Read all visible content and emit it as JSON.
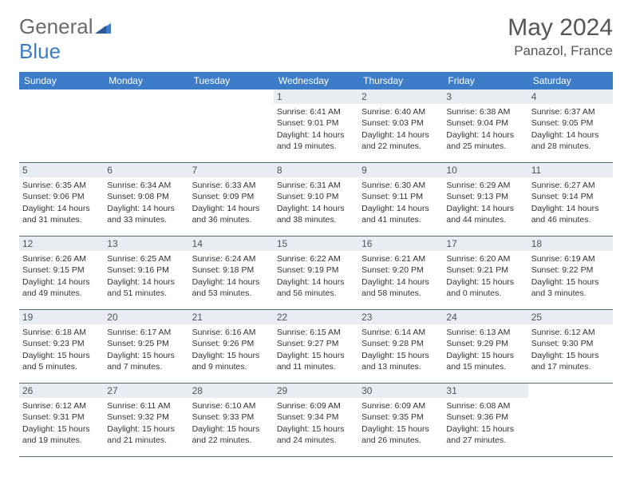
{
  "brand": {
    "part1": "General",
    "part2": "Blue"
  },
  "title": {
    "month_year": "May 2024",
    "location": "Panazol, France"
  },
  "colors": {
    "header_bg": "#3d7cc9",
    "header_text": "#ffffff",
    "daynum_bg": "#e9edf1",
    "daynum_text": "#4a5560",
    "border": "#5a6b7a",
    "title_text": "#555555",
    "logo_gray": "#6b6b6b",
    "logo_blue": "#3d7cc9"
  },
  "weekdays": [
    "Sunday",
    "Monday",
    "Tuesday",
    "Wednesday",
    "Thursday",
    "Friday",
    "Saturday"
  ],
  "weeks": [
    [
      null,
      null,
      null,
      {
        "n": "1",
        "sr": "6:41 AM",
        "ss": "9:01 PM",
        "dh": "14",
        "dm": "19"
      },
      {
        "n": "2",
        "sr": "6:40 AM",
        "ss": "9:03 PM",
        "dh": "14",
        "dm": "22"
      },
      {
        "n": "3",
        "sr": "6:38 AM",
        "ss": "9:04 PM",
        "dh": "14",
        "dm": "25"
      },
      {
        "n": "4",
        "sr": "6:37 AM",
        "ss": "9:05 PM",
        "dh": "14",
        "dm": "28"
      }
    ],
    [
      {
        "n": "5",
        "sr": "6:35 AM",
        "ss": "9:06 PM",
        "dh": "14",
        "dm": "31"
      },
      {
        "n": "6",
        "sr": "6:34 AM",
        "ss": "9:08 PM",
        "dh": "14",
        "dm": "33"
      },
      {
        "n": "7",
        "sr": "6:33 AM",
        "ss": "9:09 PM",
        "dh": "14",
        "dm": "36"
      },
      {
        "n": "8",
        "sr": "6:31 AM",
        "ss": "9:10 PM",
        "dh": "14",
        "dm": "38"
      },
      {
        "n": "9",
        "sr": "6:30 AM",
        "ss": "9:11 PM",
        "dh": "14",
        "dm": "41"
      },
      {
        "n": "10",
        "sr": "6:29 AM",
        "ss": "9:13 PM",
        "dh": "14",
        "dm": "44"
      },
      {
        "n": "11",
        "sr": "6:27 AM",
        "ss": "9:14 PM",
        "dh": "14",
        "dm": "46"
      }
    ],
    [
      {
        "n": "12",
        "sr": "6:26 AM",
        "ss": "9:15 PM",
        "dh": "14",
        "dm": "49"
      },
      {
        "n": "13",
        "sr": "6:25 AM",
        "ss": "9:16 PM",
        "dh": "14",
        "dm": "51"
      },
      {
        "n": "14",
        "sr": "6:24 AM",
        "ss": "9:18 PM",
        "dh": "14",
        "dm": "53"
      },
      {
        "n": "15",
        "sr": "6:22 AM",
        "ss": "9:19 PM",
        "dh": "14",
        "dm": "56"
      },
      {
        "n": "16",
        "sr": "6:21 AM",
        "ss": "9:20 PM",
        "dh": "14",
        "dm": "58"
      },
      {
        "n": "17",
        "sr": "6:20 AM",
        "ss": "9:21 PM",
        "dh": "15",
        "dm": "0"
      },
      {
        "n": "18",
        "sr": "6:19 AM",
        "ss": "9:22 PM",
        "dh": "15",
        "dm": "3"
      }
    ],
    [
      {
        "n": "19",
        "sr": "6:18 AM",
        "ss": "9:23 PM",
        "dh": "15",
        "dm": "5"
      },
      {
        "n": "20",
        "sr": "6:17 AM",
        "ss": "9:25 PM",
        "dh": "15",
        "dm": "7"
      },
      {
        "n": "21",
        "sr": "6:16 AM",
        "ss": "9:26 PM",
        "dh": "15",
        "dm": "9"
      },
      {
        "n": "22",
        "sr": "6:15 AM",
        "ss": "9:27 PM",
        "dh": "15",
        "dm": "11"
      },
      {
        "n": "23",
        "sr": "6:14 AM",
        "ss": "9:28 PM",
        "dh": "15",
        "dm": "13"
      },
      {
        "n": "24",
        "sr": "6:13 AM",
        "ss": "9:29 PM",
        "dh": "15",
        "dm": "15"
      },
      {
        "n": "25",
        "sr": "6:12 AM",
        "ss": "9:30 PM",
        "dh": "15",
        "dm": "17"
      }
    ],
    [
      {
        "n": "26",
        "sr": "6:12 AM",
        "ss": "9:31 PM",
        "dh": "15",
        "dm": "19"
      },
      {
        "n": "27",
        "sr": "6:11 AM",
        "ss": "9:32 PM",
        "dh": "15",
        "dm": "21"
      },
      {
        "n": "28",
        "sr": "6:10 AM",
        "ss": "9:33 PM",
        "dh": "15",
        "dm": "22"
      },
      {
        "n": "29",
        "sr": "6:09 AM",
        "ss": "9:34 PM",
        "dh": "15",
        "dm": "24"
      },
      {
        "n": "30",
        "sr": "6:09 AM",
        "ss": "9:35 PM",
        "dh": "15",
        "dm": "26"
      },
      {
        "n": "31",
        "sr": "6:08 AM",
        "ss": "9:36 PM",
        "dh": "15",
        "dm": "27"
      },
      null
    ]
  ],
  "labels": {
    "sunrise": "Sunrise:",
    "sunset": "Sunset:",
    "daylight": "Daylight:",
    "hours_and": "hours and",
    "minutes": "minutes."
  }
}
